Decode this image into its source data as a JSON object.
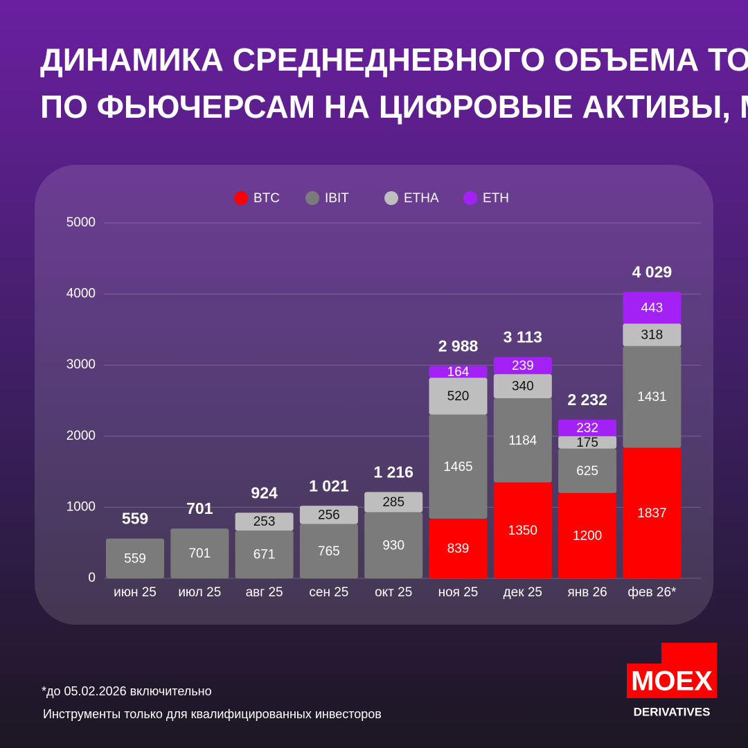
{
  "chart_data": {
    "type": "stacked-bar",
    "title": [
      "ДИНАМИКА СРЕДНЕДНЕВНОГО ОБЪЕМА ТОРГОВ",
      "ПО ФЬЮЧЕРСАМ НА ЦИФРОВЫЕ АКТИВЫ, МЛН РУБ"
    ],
    "categories": [
      "июн 25",
      "июл 25",
      "авг 25",
      "сен 25",
      "окт 25",
      "ноя 25",
      "дек 25",
      "янв 26",
      "фев 26*"
    ],
    "series": [
      {
        "name": "BTC",
        "color": "#ff0000",
        "values": [
          null,
          null,
          null,
          null,
          null,
          839,
          1350,
          1200,
          1837
        ]
      },
      {
        "name": "IBIT",
        "color": "#7b7b7b",
        "values": [
          559,
          701,
          671,
          765,
          930,
          1465,
          1184,
          625,
          1431
        ]
      },
      {
        "name": "ETHA",
        "color": "#bebebe",
        "values": [
          null,
          null,
          253,
          256,
          285,
          520,
          340,
          175,
          318
        ]
      },
      {
        "name": "ETH",
        "color": "#a321f5",
        "values": [
          null,
          null,
          null,
          null,
          null,
          164,
          239,
          232,
          443
        ]
      }
    ],
    "totals": [
      559,
      701,
      924,
      1021,
      1216,
      2988,
      3113,
      2232,
      4029
    ],
    "totals_labels": [
      "559",
      "701",
      "924",
      "1 021",
      "1 216",
      "2 988",
      "3 113",
      "2 232",
      "4 029"
    ],
    "ylim": [
      0,
      5000
    ],
    "yticks": [
      0,
      1000,
      2000,
      3000,
      4000,
      5000
    ],
    "grid": true,
    "legend": "top",
    "footnotes": [
      "*до 05.02.2026 включительно",
      "Инструменты только для квалифицированных инвесторов"
    ],
    "logo": {
      "name": "MOEX",
      "subtitle": "DERIVATIVES"
    }
  }
}
